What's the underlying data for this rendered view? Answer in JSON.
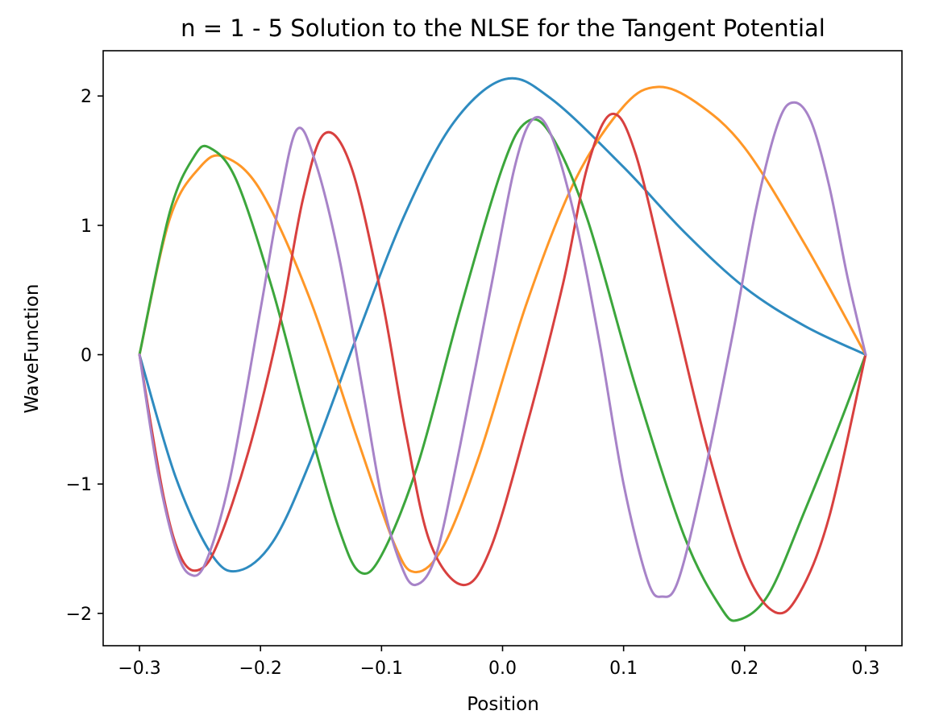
{
  "chart_data": {
    "type": "line",
    "title": "n = 1 - 5 Solution to the NLSE for the Tangent Potential",
    "xlabel": "Position",
    "ylabel": "WaveFunction",
    "xlim": [
      -0.33,
      0.33
    ],
    "ylim": [
      -2.25,
      2.35
    ],
    "xticks": [
      -0.3,
      -0.2,
      -0.1,
      0.0,
      0.1,
      0.2,
      0.3
    ],
    "xtick_labels": [
      "−0.3",
      "−0.2",
      "−0.1",
      "0.0",
      "0.1",
      "0.2",
      "0.3"
    ],
    "yticks": [
      -2,
      -1,
      0,
      1,
      2
    ],
    "ytick_labels": [
      "−2",
      "−1",
      "0",
      "1",
      "2"
    ],
    "grid": false,
    "legend": "none",
    "series": [
      {
        "color": "#2e8bc0",
        "points": [
          [
            -0.3,
            0
          ],
          [
            -0.27,
            -0.95
          ],
          [
            -0.24,
            -1.55
          ],
          [
            -0.218,
            -1.67
          ],
          [
            -0.19,
            -1.45
          ],
          [
            -0.16,
            -0.85
          ],
          [
            -0.12,
            0.15
          ],
          [
            -0.08,
            1.1
          ],
          [
            -0.04,
            1.8
          ],
          [
            0.002,
            2.13
          ],
          [
            0.04,
            1.98
          ],
          [
            0.1,
            1.45
          ],
          [
            0.15,
            0.95
          ],
          [
            0.2,
            0.52
          ],
          [
            0.25,
            0.22
          ],
          [
            0.3,
            0
          ]
        ]
      },
      {
        "color": "#ff9727",
        "points": [
          [
            -0.3,
            0
          ],
          [
            -0.275,
            1.05
          ],
          [
            -0.25,
            1.45
          ],
          [
            -0.23,
            1.53
          ],
          [
            -0.2,
            1.27
          ],
          [
            -0.16,
            0.45
          ],
          [
            -0.12,
            -0.65
          ],
          [
            -0.09,
            -1.45
          ],
          [
            -0.073,
            -1.68
          ],
          [
            -0.05,
            -1.5
          ],
          [
            -0.02,
            -0.8
          ],
          [
            0.02,
            0.4
          ],
          [
            0.06,
            1.35
          ],
          [
            0.1,
            1.92
          ],
          [
            0.128,
            2.07
          ],
          [
            0.16,
            1.95
          ],
          [
            0.2,
            1.6
          ],
          [
            0.25,
            0.85
          ],
          [
            0.3,
            0
          ]
        ]
      },
      {
        "color": "#3ca63c",
        "points": [
          [
            -0.3,
            0
          ],
          [
            -0.275,
            1.1
          ],
          [
            -0.255,
            1.53
          ],
          [
            -0.242,
            1.6
          ],
          [
            -0.22,
            1.35
          ],
          [
            -0.19,
            0.5
          ],
          [
            -0.16,
            -0.55
          ],
          [
            -0.135,
            -1.35
          ],
          [
            -0.118,
            -1.68
          ],
          [
            -0.1,
            -1.55
          ],
          [
            -0.07,
            -0.85
          ],
          [
            -0.035,
            0.35
          ],
          [
            0,
            1.45
          ],
          [
            0.02,
            1.8
          ],
          [
            0.04,
            1.7
          ],
          [
            0.07,
            1.05
          ],
          [
            0.11,
            -0.25
          ],
          [
            0.15,
            -1.4
          ],
          [
            0.18,
            -1.95
          ],
          [
            0.195,
            -2.05
          ],
          [
            0.22,
            -1.85
          ],
          [
            0.25,
            -1.2
          ],
          [
            0.28,
            -0.5
          ],
          [
            0.3,
            0
          ]
        ]
      },
      {
        "color": "#d8403f",
        "points": [
          [
            -0.3,
            0
          ],
          [
            -0.28,
            -1.1
          ],
          [
            -0.265,
            -1.58
          ],
          [
            -0.25,
            -1.66
          ],
          [
            -0.235,
            -1.45
          ],
          [
            -0.21,
            -0.75
          ],
          [
            -0.185,
            0.2
          ],
          [
            -0.165,
            1.2
          ],
          [
            -0.147,
            1.71
          ],
          [
            -0.125,
            1.45
          ],
          [
            -0.1,
            0.45
          ],
          [
            -0.08,
            -0.6
          ],
          [
            -0.06,
            -1.45
          ],
          [
            -0.033,
            -1.78
          ],
          [
            -0.01,
            -1.5
          ],
          [
            0.02,
            -0.55
          ],
          [
            0.05,
            0.55
          ],
          [
            0.07,
            1.45
          ],
          [
            0.09,
            1.86
          ],
          [
            0.11,
            1.55
          ],
          [
            0.14,
            0.4
          ],
          [
            0.17,
            -0.75
          ],
          [
            0.2,
            -1.65
          ],
          [
            0.225,
            -1.99
          ],
          [
            0.245,
            -1.85
          ],
          [
            0.27,
            -1.25
          ],
          [
            0.3,
            0
          ]
        ]
      },
      {
        "color": "#a783c8",
        "points": [
          [
            -0.3,
            0
          ],
          [
            -0.285,
            -0.9
          ],
          [
            -0.27,
            -1.5
          ],
          [
            -0.258,
            -1.7
          ],
          [
            -0.245,
            -1.6
          ],
          [
            -0.225,
            -0.95
          ],
          [
            -0.2,
            0.35
          ],
          [
            -0.185,
            1.15
          ],
          [
            -0.17,
            1.74
          ],
          [
            -0.155,
            1.5
          ],
          [
            -0.135,
            0.75
          ],
          [
            -0.115,
            -0.3
          ],
          [
            -0.1,
            -1.1
          ],
          [
            -0.085,
            -1.6
          ],
          [
            -0.072,
            -1.78
          ],
          [
            -0.055,
            -1.55
          ],
          [
            -0.035,
            -0.7
          ],
          [
            -0.01,
            0.5
          ],
          [
            0.01,
            1.45
          ],
          [
            0.025,
            1.82
          ],
          [
            0.04,
            1.7
          ],
          [
            0.06,
            1.05
          ],
          [
            0.08,
            0.1
          ],
          [
            0.1,
            -1.0
          ],
          [
            0.12,
            -1.75
          ],
          [
            0.132,
            -1.87
          ],
          [
            0.145,
            -1.75
          ],
          [
            0.165,
            -1.0
          ],
          [
            0.19,
            0.15
          ],
          [
            0.21,
            1.15
          ],
          [
            0.228,
            1.8
          ],
          [
            0.241,
            1.95
          ],
          [
            0.255,
            1.8
          ],
          [
            0.27,
            1.3
          ],
          [
            0.285,
            0.6
          ],
          [
            0.3,
            0
          ]
        ]
      }
    ]
  }
}
